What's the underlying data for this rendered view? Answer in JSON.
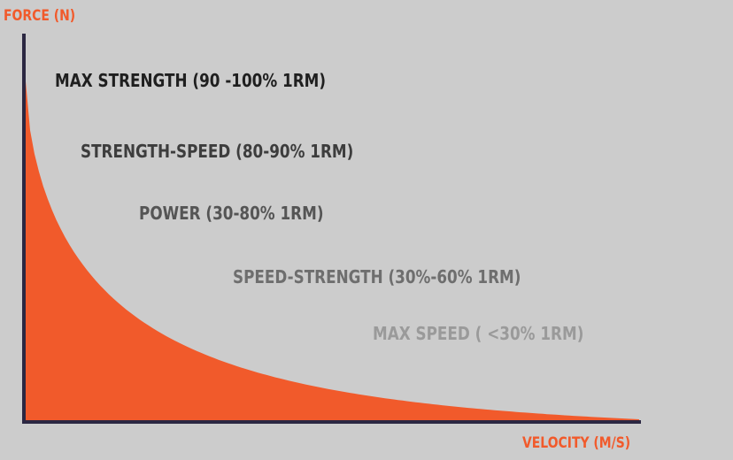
{
  "chart_data": {
    "type": "area",
    "title": "",
    "xlabel": "VELOCITY (M/S)",
    "ylabel": "FORCE (N)",
    "grid": false,
    "legend": "none",
    "fill_color": "#f15a2b",
    "axis_color": "#2b2742",
    "label_color": "#f15a2b",
    "curve": "decaying force-velocity curve (hyperbolic-like)",
    "zones": [
      {
        "label": "MAX STRENGTH (90 -100% 1RM)",
        "color": "#1f1f1f"
      },
      {
        "label": "STRENGTH-SPEED (80-90% 1RM)",
        "color": "#3d3d3d"
      },
      {
        "label": "POWER (30-80% 1RM)",
        "color": "#555555"
      },
      {
        "label": "SPEED-STRENGTH (30%-60% 1RM)",
        "color": "#6e6e6e"
      },
      {
        "label": "MAX SPEED ( <30% 1RM)",
        "color": "#9a9a9a"
      }
    ]
  }
}
